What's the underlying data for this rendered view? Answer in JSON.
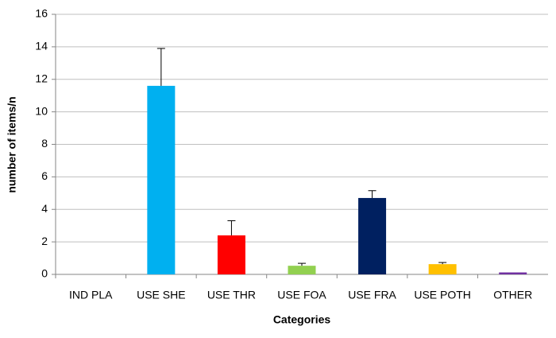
{
  "chart_data": {
    "type": "bar",
    "xlabel": "Categories",
    "ylabel": "number of items/n",
    "categories": [
      "IND PLA",
      "USE SHE",
      "USE THR",
      "USE FOA",
      "USE FRA",
      "USE POTH",
      "OTHER"
    ],
    "values": [
      0,
      11.6,
      2.4,
      0.53,
      4.7,
      0.63,
      0.12
    ],
    "errors": [
      0,
      2.3,
      0.9,
      0.15,
      0.45,
      0.1,
      0
    ],
    "colors": [
      "#00b0f0",
      "#00b0f0",
      "#ff0000",
      "#92d050",
      "#002060",
      "#ffc000",
      "#7030a0"
    ],
    "ylim": [
      0,
      16
    ],
    "yticks": [
      0,
      2,
      4,
      6,
      8,
      10,
      12,
      14,
      16
    ],
    "grid": true
  }
}
